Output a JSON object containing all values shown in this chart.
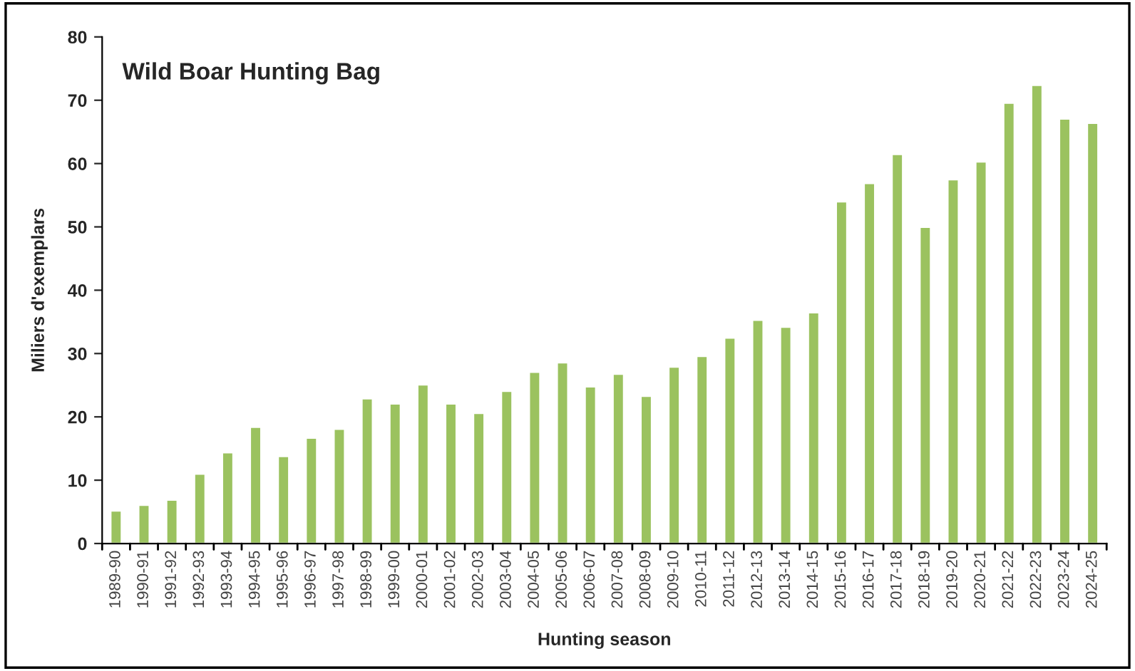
{
  "chart_data": {
    "type": "bar",
    "title": "Wild Boar Hunting Bag",
    "xlabel": "Hunting season",
    "ylabel": "Miliers d'exemplars",
    "categories": [
      "1989-90",
      "1990-91",
      "1991-92",
      "1992-93",
      "1993-94",
      "1994-95",
      "1995-96",
      "1996-97",
      "1997-98",
      "1998-99",
      "1999-00",
      "2000-01",
      "2001-02",
      "2002-03",
      "2003-04",
      "2004-05",
      "2005-06",
      "2006-07",
      "2007-08",
      "2008-09",
      "2009-10",
      "2010-11",
      "2011-12",
      "2012-13",
      "2013-14",
      "2014-15",
      "2015-16",
      "2016-17",
      "2017-18",
      "2018-19",
      "2019-20",
      "2020-21",
      "2021-22",
      "2022-23",
      "2023-24",
      "2024-25"
    ],
    "values": [
      5.2,
      6.1,
      6.9,
      11,
      14.4,
      18.4,
      13.8,
      16.7,
      18.1,
      22.9,
      22.1,
      25.1,
      22.1,
      20.6,
      24.1,
      27.1,
      28.6,
      24.8,
      26.8,
      23.3,
      27.9,
      29.6,
      32.5,
      35.3,
      34.2,
      36.5,
      54,
      56.9,
      61.5,
      50,
      57.5,
      60.3,
      69.6,
      72.4,
      67.1,
      66.4
    ],
    "color": "#9bc25f",
    "ylim": [
      0,
      80
    ],
    "yticks": [
      0,
      10,
      20,
      30,
      40,
      50,
      60,
      70,
      80
    ],
    "grid": false,
    "legend": false
  }
}
